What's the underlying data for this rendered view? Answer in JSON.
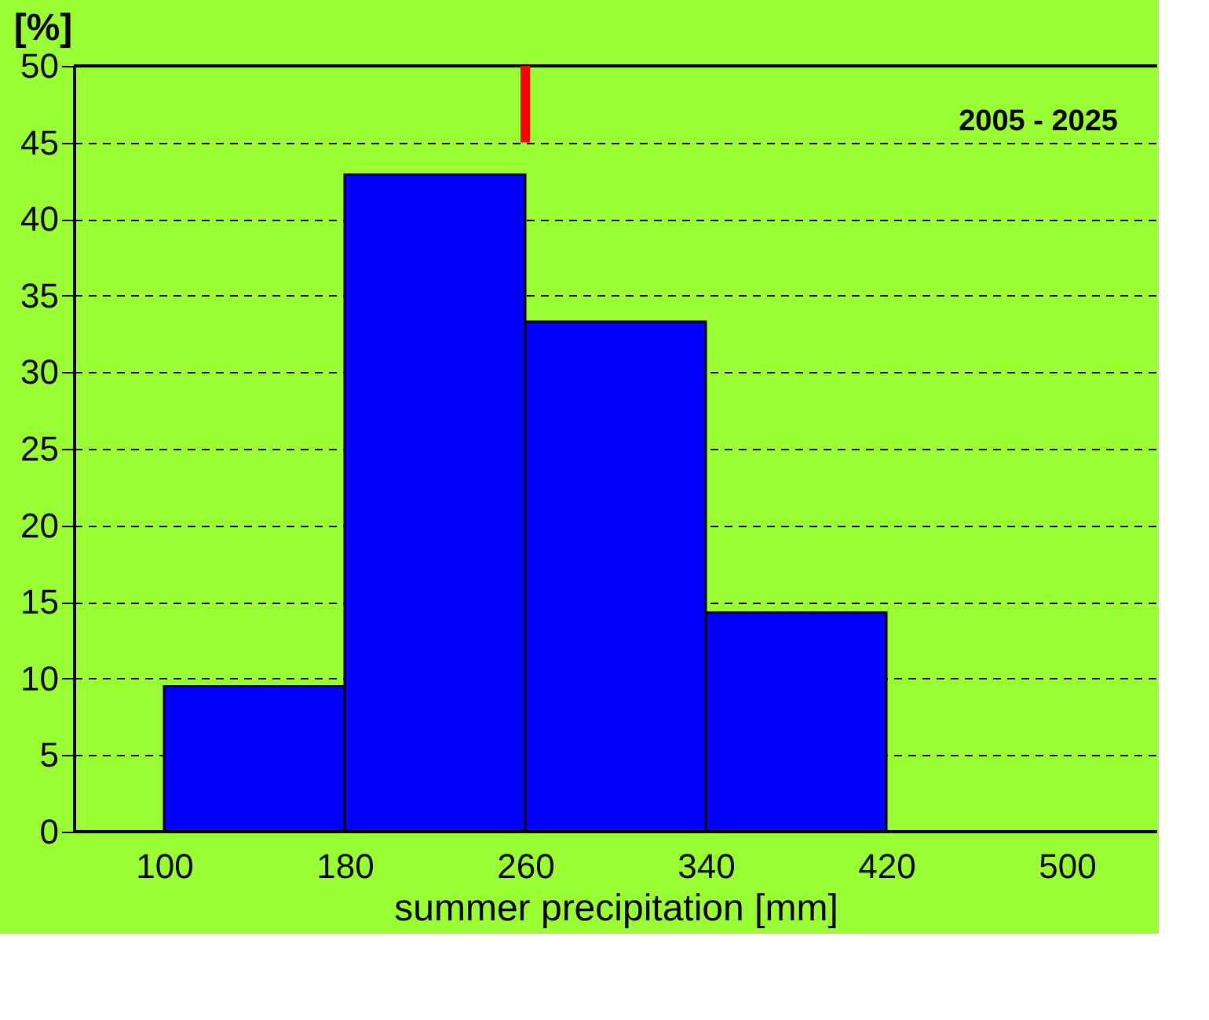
{
  "chart_data": {
    "type": "histogram",
    "xlabel": "summer precipitation [mm]",
    "ylabel": "[%]",
    "bins": [
      100,
      180,
      260,
      340,
      420
    ],
    "values": [
      9.5,
      42.9,
      33.3,
      14.3
    ],
    "color": "#0000ff",
    "xlim": [
      60,
      540
    ],
    "xticks": [
      100,
      180,
      260,
      340,
      420,
      500
    ],
    "ylim": [
      0,
      50
    ],
    "yticks": [
      0,
      5,
      10,
      15,
      20,
      25,
      30,
      35,
      40,
      45,
      50
    ],
    "grid": "y",
    "ref_lines": [
      {
        "axis": "x",
        "value": 260,
        "color": "#ff0000"
      }
    ],
    "annotations": [
      "2005 - 2025"
    ]
  }
}
